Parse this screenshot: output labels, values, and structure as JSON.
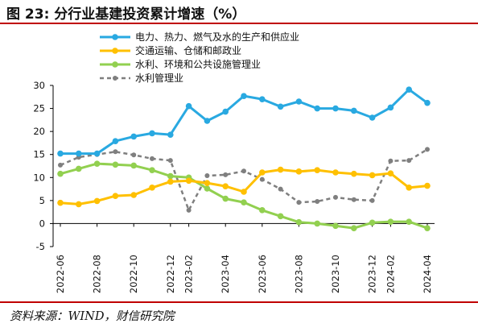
{
  "title": "图 23:  分行业基建投资累计增速（%）",
  "source": "资料来源：WIND，财信研究院",
  "chart_data": {
    "type": "line",
    "x": [
      "2022-06",
      "2022-07",
      "2022-08",
      "2022-09",
      "2022-10",
      "2022-11",
      "2022-12",
      "2023-02",
      "2023-03",
      "2023-04",
      "2023-05",
      "2023-06",
      "2023-07",
      "2023-08",
      "2023-09",
      "2023-10",
      "2023-11",
      "2023-12",
      "2024-02",
      "2024-03",
      "2024-04"
    ],
    "xticks": [
      "2022-06",
      "2022-08",
      "2022-10",
      "2022-12",
      "2023-02",
      "2023-04",
      "2023-06",
      "2023-08",
      "2023-10",
      "2023-12",
      "2024-02",
      "2024-04"
    ],
    "ylim": [
      -5,
      30
    ],
    "yticks": [
      -5,
      0,
      5,
      10,
      15,
      20,
      25,
      30
    ],
    "legend_position": "top",
    "series": [
      {
        "name": "电力、热力、燃气及水的生产和供应业",
        "color": "#29a9e1",
        "style": "solid",
        "marker": true,
        "values": [
          15.2,
          15.2,
          15.2,
          17.9,
          18.9,
          19.6,
          19.3,
          25.5,
          22.3,
          24.3,
          27.7,
          27.0,
          25.4,
          26.5,
          25.0,
          25.0,
          24.5,
          23.0,
          25.2,
          29.1,
          26.2
        ]
      },
      {
        "name": "交通运输、仓储和邮政业",
        "color": "#ffc000",
        "style": "solid",
        "marker": true,
        "values": [
          4.5,
          4.2,
          4.9,
          6.0,
          6.2,
          7.8,
          9.1,
          9.3,
          8.8,
          8.1,
          6.9,
          11.1,
          11.7,
          11.3,
          11.6,
          11.1,
          10.8,
          10.5,
          10.9,
          7.8,
          8.2
        ]
      },
      {
        "name": "水利、环境和公共设施管理业",
        "color": "#92d050",
        "style": "solid",
        "marker": true,
        "values": [
          10.8,
          11.9,
          13.0,
          12.8,
          12.6,
          11.6,
          10.3,
          10.0,
          7.6,
          5.4,
          4.6,
          2.9,
          1.6,
          0.3,
          0.0,
          -0.5,
          -1.0,
          0.2,
          0.4,
          0.4,
          -1.0
        ]
      },
      {
        "name": "水利管理业",
        "color": "#7f7f7f",
        "style": "dashed",
        "marker": true,
        "values": [
          12.7,
          14.4,
          15.0,
          15.6,
          14.9,
          14.1,
          13.7,
          2.9,
          10.4,
          10.6,
          11.4,
          9.6,
          7.5,
          4.6,
          4.8,
          5.7,
          5.2,
          5.0,
          13.6,
          13.7,
          16.1
        ]
      }
    ]
  }
}
